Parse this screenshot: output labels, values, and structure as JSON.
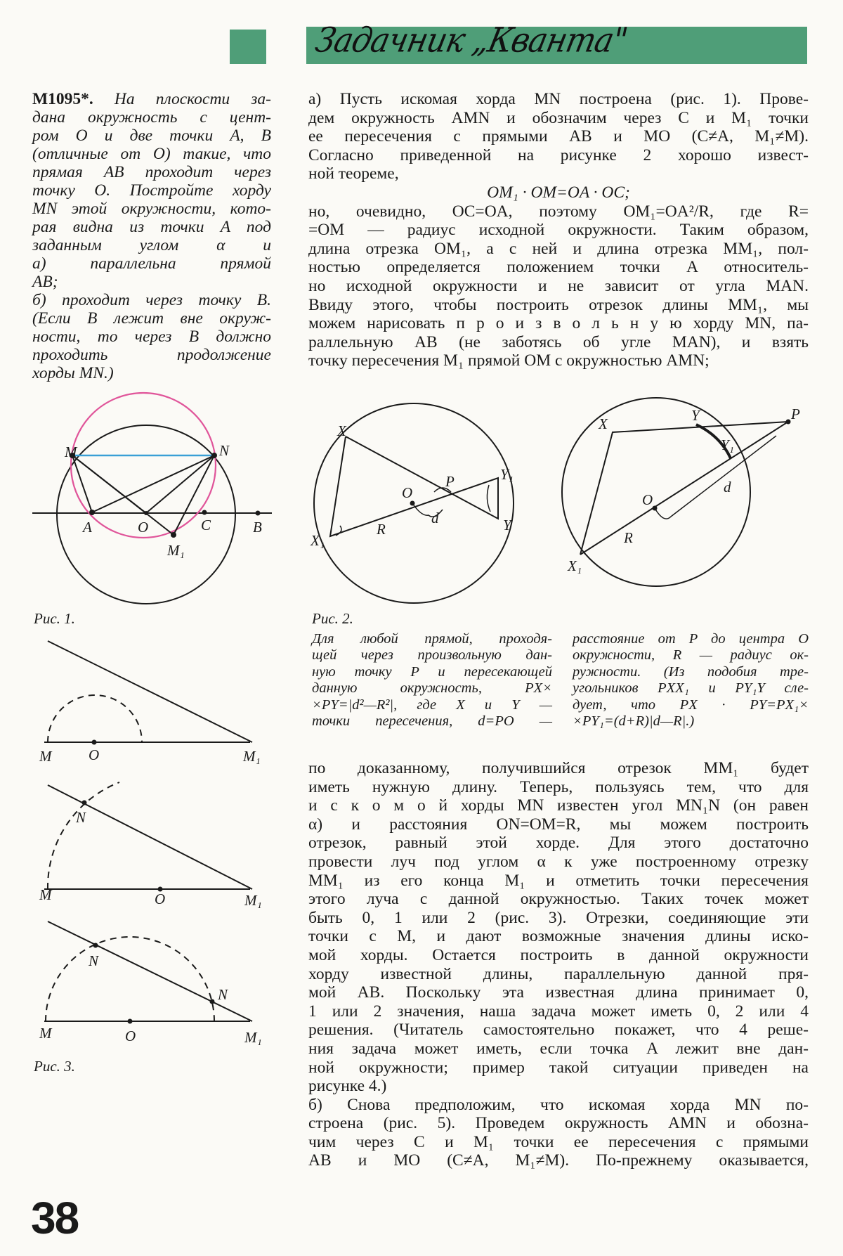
{
  "header": {
    "section_title": "Задачник „Кванта\"",
    "accent_color": "#4f9e78"
  },
  "problem": {
    "number": "М1095*.",
    "lines": [
      "На плоскости за-",
      "дана окружность с цент-",
      "ром O и две точки A, B",
      "(отличные от O) такие, что",
      "прямая AB проходит через",
      "точку O. Постройте хорду",
      "MN этой окружности, кото-",
      "рая видна из точки A под",
      "заданным углом α и",
      "а) параллельна прямой",
      "AB;",
      "б) проходит через точку B.",
      "(Если B лежит вне окруж-",
      "ности, то через B должно",
      "проходить продолжение",
      "хорды MN.)"
    ]
  },
  "solution_top": {
    "lines": [
      "а) Пусть искомая хорда MN построена (рис. 1). Прове-",
      "дем окружность AMN и обозначим через C и M₁ точки",
      "ее пересечения с прямыми AB и MO (C≠A, M₁≠M).",
      "Согласно приведенной на рисунке 2 хорошо извест-",
      "ной теореме,",
      "OM₁ · OM=OA · OC;",
      "но, очевидно, OC=OA, поэтому OM₁=OA²/R, где R=",
      "=OM — радиус исходной окружности. Таким образом,",
      "длина отрезка OM₁, а с ней и длина отрезка MM₁, пол-",
      "ностью определяется положением точки A относитель-",
      "но исходной окружности и не зависит от угла MAN.",
      "Ввиду этого, чтобы построить отрезок длины MM₁, мы",
      "можем нарисовать п р о и з в о л ь н у ю хорду MN, па-",
      "раллельную AB (не заботясь об угле MAN), и взять",
      "точку пересечения M₁ прямой OM с окружностью AMN;"
    ]
  },
  "solution_bottom": {
    "lines": [
      "по доказанному, получившийся отрезок MM₁ будет",
      "иметь нужную длину. Теперь, пользуясь тем, что для",
      "и с к о м о й хорды MN известен угол MN₁N (он равен",
      "α) и расстояния ON=OM=R, мы можем построить",
      "отрезок, равный этой хорде. Для этого достаточно",
      "провести луч под углом α к уже построенному отрезку",
      "MM₁ из его конца M₁ и отметить точки пересечения",
      "этого луча с данной окружностью. Таких точек может",
      "быть 0, 1 или 2 (рис. 3). Отрезки, соединяющие эти",
      "точки с M, и дают возможные значения длины иско-",
      "мой хорды. Остается построить в данной окружности",
      "хорду известной длины, параллельную данной пря-",
      "мой AB. Поскольку эта известная длина принимает 0,",
      "1 или 2 значения, наша задача может иметь 0, 2 или 4",
      "решения. (Читатель самостоятельно покажет, что 4 реше-",
      "ния задача может иметь, если точка A лежит вне дан-",
      "ной окружности; пример такой ситуации приведен на",
      "рисунке 4.)",
      "    б) Снова предположим, что искомая хорда MN по-",
      "строена (рис. 5). Проведем окружность AMN и обозна-",
      "чим через C и M₁ точки ее пересечения с прямыми",
      "AB и MO (C≠A, M₁≠M). По-прежнему оказывается,"
    ]
  },
  "fig1": {
    "caption": "Рис. 1.",
    "labels": {
      "M": "M",
      "N": "N",
      "A": "A",
      "O": "O",
      "C": "C",
      "B": "B",
      "M1": "M₁"
    },
    "circle_amn_color": "#e0559a",
    "chord_color": "#3a9fd6"
  },
  "fig2": {
    "caption": "Рис. 2.",
    "left": {
      "X": "X",
      "X1": "X₁",
      "Y": "Y",
      "Y1": "Y₁",
      "O": "O",
      "P": "P",
      "R": "R",
      "d": "d"
    },
    "right": {
      "X": "X",
      "X1": "X₁",
      "Y": "Y",
      "Y1": "Y₁",
      "O": "O",
      "P": "P",
      "R": "R",
      "d": "d"
    },
    "caption_text_a": [
      "Для любой прямой, проходя-",
      "щей через произвольную дан-",
      "ную точку P и пересекающей",
      "данную окружность, PX×",
      "×PY=|d²—R²|, где X и Y —",
      "точки пересечения, d=PO —"
    ],
    "caption_text_b": [
      "расстояние от P до центра O",
      "окружности, R — радиус ок-",
      "ружности. (Из подобия тре-",
      "угольников PXX₁ и PY₁Y сле-",
      "дует, что PX · PY=PX₁×",
      "×PY₁=(d+R)|d—R|.)"
    ]
  },
  "fig3": {
    "caption": "Рис. 3.",
    "labels": {
      "M": "M",
      "O": "O",
      "M1": "M₁",
      "N": "N"
    }
  },
  "page_number": "38"
}
